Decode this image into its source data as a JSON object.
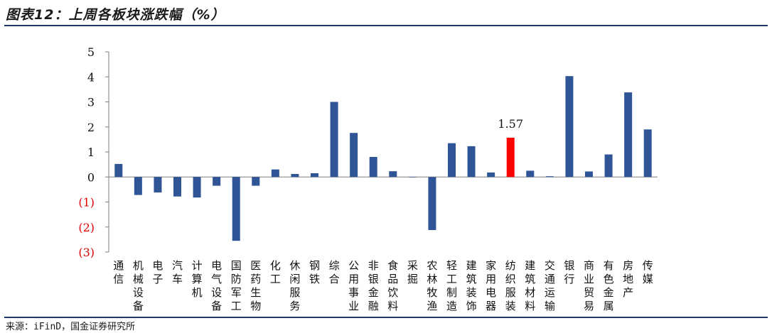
{
  "title": "图表12：上周各板块涨跌幅（%）",
  "source": "来源：iFinD，国金证券研究所",
  "colors": {
    "bar": "#2f5597",
    "highlight": "#ff0000",
    "negative_tick": "#e00000",
    "axis": "#7f7f7f"
  },
  "chart_data": {
    "type": "bar",
    "title": "",
    "xlabel": "",
    "ylabel": "",
    "ylim": [
      -3,
      5
    ],
    "yticks": [
      5,
      4,
      3,
      2,
      1,
      0,
      -1,
      -2,
      -3
    ],
    "ytick_labels": [
      "5",
      "4",
      "3",
      "2",
      "1",
      "0",
      "(1)",
      "(2)",
      "(3)"
    ],
    "categories": [
      "通信",
      "机械设备",
      "电子",
      "汽车",
      "计算机",
      "电气设备",
      "国防军工",
      "医药生物",
      "化工",
      "休闲服务",
      "钢铁",
      "综合",
      "公用事业",
      "非银金融",
      "食品饮料",
      "采掘",
      "农林牧渔",
      "轻工制造",
      "建筑装饰",
      "家用电器",
      "纺织服装",
      "建筑材料",
      "交通运输",
      "银行",
      "商业贸易",
      "有色金属",
      "房地产",
      "传媒"
    ],
    "values": [
      0.52,
      -0.72,
      -0.62,
      -0.78,
      -0.82,
      -0.35,
      -2.55,
      -0.35,
      0.3,
      0.12,
      0.15,
      3.0,
      1.76,
      0.8,
      0.23,
      0.0,
      -2.12,
      1.35,
      1.23,
      0.18,
      1.57,
      0.25,
      0.03,
      4.03,
      0.22,
      0.9,
      3.38,
      1.9
    ],
    "highlight_index": 20,
    "data_labels": [
      {
        "index": 20,
        "text": "1.57"
      }
    ],
    "grid": false,
    "legend": "none"
  }
}
